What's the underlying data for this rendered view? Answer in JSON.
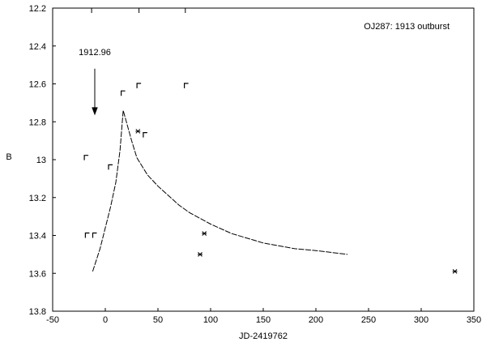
{
  "chart_data": {
    "type": "scatter",
    "title": "OJ287: 1913 outburst",
    "xlabel": "JD-2419762",
    "ylabel": "B",
    "xlim": [
      -50,
      350
    ],
    "ylim": [
      12.2,
      13.8
    ],
    "y_inverted": true,
    "xticks": [
      -50,
      0,
      50,
      100,
      150,
      200,
      250,
      300,
      350
    ],
    "yticks": [
      12.2,
      12.4,
      12.6,
      12.8,
      13.0,
      13.2,
      13.4,
      13.6,
      13.8
    ],
    "ytick_labels": [
      "12.2",
      "12.4",
      "12.6",
      "12.8",
      "13",
      "13.2",
      "13.4",
      "13.6",
      "13.8"
    ],
    "top_tick_marks_x": [
      -13,
      32,
      76
    ],
    "grid": false,
    "annotation": {
      "text": "1912.96",
      "arrow_x": -10,
      "arrow_y_from": 12.52,
      "arrow_y_to": 12.76
    },
    "series": [
      {
        "kind": "upper-limit",
        "marker": "bracket",
        "x": [
          -18,
          -17,
          -10,
          5,
          17,
          32,
          38,
          77
        ],
        "y": [
          12.99,
          13.4,
          13.4,
          13.04,
          12.65,
          12.61,
          12.87,
          12.61
        ]
      },
      {
        "kind": "observed",
        "marker": "asterisk",
        "x": [
          31,
          94,
          90,
          332
        ],
        "y": [
          12.85,
          13.39,
          13.5,
          13.59
        ]
      },
      {
        "kind": "model-curve",
        "x": [
          -12,
          -5,
          0,
          5,
          10,
          14,
          17,
          20,
          25,
          30,
          40,
          50,
          60,
          70,
          80,
          100,
          120,
          150,
          180,
          200,
          230
        ],
        "y": [
          13.59,
          13.47,
          13.36,
          13.25,
          13.12,
          12.95,
          12.74,
          12.8,
          12.9,
          12.99,
          13.08,
          13.14,
          13.19,
          13.24,
          13.28,
          13.34,
          13.39,
          13.44,
          13.47,
          13.48,
          13.5
        ]
      }
    ]
  }
}
